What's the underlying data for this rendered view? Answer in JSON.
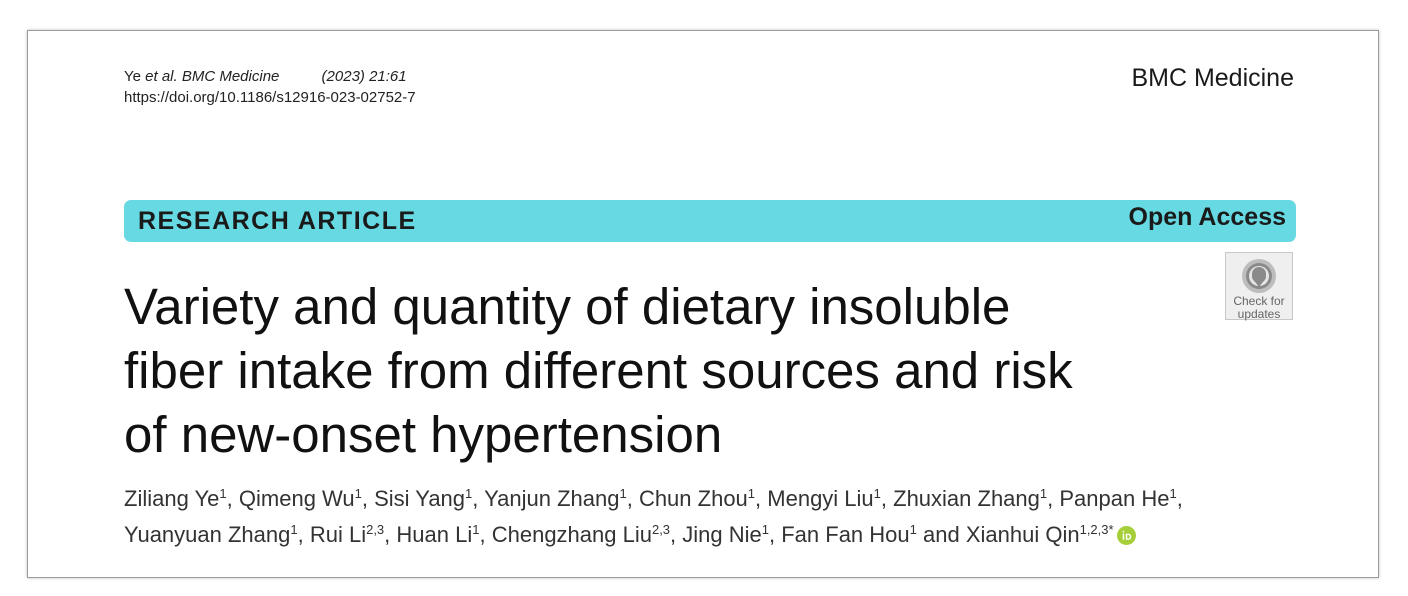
{
  "header": {
    "citation_author": "Ye",
    "citation_etal": "et al. BMC Medicine",
    "citation_year": "(2023) 21:61",
    "doi": "https://doi.org/10.1186/s12916-023-02752-7",
    "journal": "BMC Medicine"
  },
  "banner": {
    "type": "RESEARCH ARTICLE",
    "access": "Open Access",
    "color": "#66d9e2"
  },
  "check_updates": {
    "line1": "Check for",
    "line2": "updates"
  },
  "title_lines": [
    "Variety and quantity of dietary insoluble",
    "fiber intake from different sources and risk",
    "of new-onset hypertension"
  ],
  "authors": [
    {
      "name": "Ziliang Ye",
      "aff": "1"
    },
    {
      "name": "Qimeng Wu",
      "aff": "1"
    },
    {
      "name": "Sisi Yang",
      "aff": "1"
    },
    {
      "name": "Yanjun Zhang",
      "aff": "1"
    },
    {
      "name": "Chun Zhou",
      "aff": "1"
    },
    {
      "name": "Mengyi Liu",
      "aff": "1"
    },
    {
      "name": "Zhuxian Zhang",
      "aff": "1"
    },
    {
      "name": "Panpan He",
      "aff": "1"
    },
    {
      "name": "Yuanyuan Zhang",
      "aff": "1"
    },
    {
      "name": "Rui Li",
      "aff": "2,3"
    },
    {
      "name": "Huan Li",
      "aff": "1"
    },
    {
      "name": "Chengzhang Liu",
      "aff": "2,3"
    },
    {
      "name": "Jing Nie",
      "aff": "1"
    },
    {
      "name": "Fan Fan Hou",
      "aff": "1"
    },
    {
      "name": "Xianhui Qin",
      "aff": "1,2,3*"
    }
  ],
  "authors_conjunction": "and",
  "icons": {
    "orcid": "orcid-icon",
    "check": "check-for-updates-icon"
  },
  "orcid_color": "#a6ce39"
}
